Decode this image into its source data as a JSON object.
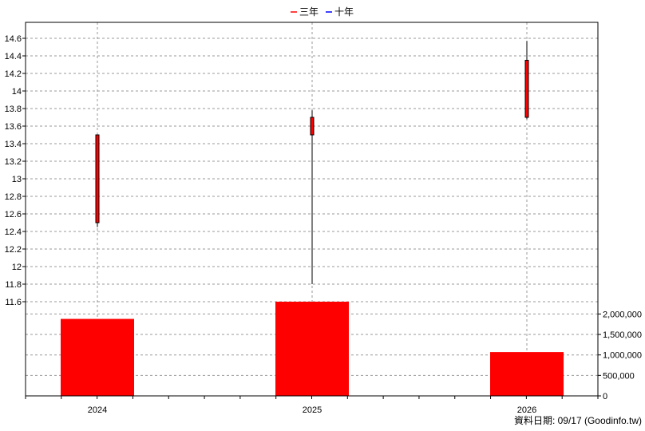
{
  "chart_data": {
    "type": "candlestick+bar",
    "legend": [
      {
        "label": "三年",
        "color": "#ff0000"
      },
      {
        "label": "十年",
        "color": "#0000ff"
      }
    ],
    "categories": [
      "2024",
      "2025",
      "2026"
    ],
    "price": {
      "yticks": [
        "11.6",
        "11.8",
        "12",
        "12.2",
        "12.4",
        "12.6",
        "12.8",
        "13",
        "13.2",
        "13.4",
        "13.6",
        "13.8",
        "14",
        "14.2",
        "14.4",
        "14.6"
      ],
      "ylim": [
        11.6,
        14.6
      ],
      "candles": [
        {
          "x": "2024",
          "open": 12.5,
          "close": 13.5,
          "high": 13.5,
          "low": 12.45
        },
        {
          "x": "2025",
          "open": 13.5,
          "close": 13.7,
          "high": 13.78,
          "low": 11.8
        },
        {
          "x": "2026",
          "open": 13.7,
          "close": 14.35,
          "high": 14.57,
          "low": 13.68
        }
      ]
    },
    "volume": {
      "yticks": [
        "0",
        "500,000",
        "1,000,000",
        "1,500,000",
        "2,000,000"
      ],
      "ylim": [
        0,
        2300000
      ],
      "values": [
        1880000,
        2300000,
        1070000
      ]
    },
    "grid": true,
    "bar_color": "#ff0000"
  },
  "footer": "資料日期: 09/17  (Goodinfo.tw)"
}
